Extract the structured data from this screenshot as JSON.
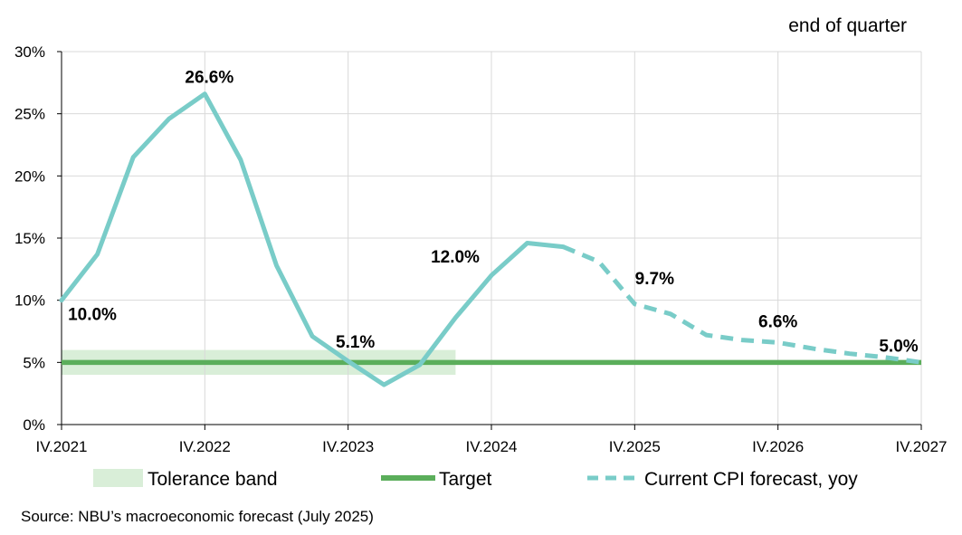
{
  "chart_data": {
    "type": "line",
    "title": "",
    "unit_note": "end of quarter",
    "xlabel": "",
    "ylabel": "",
    "x_tick_labels": [
      "IV.2021",
      "IV.2022",
      "IV.2023",
      "IV.2024",
      "IV.2025",
      "IV.2026",
      "IV.2027"
    ],
    "y_tick_labels": [
      "0%",
      "5%",
      "10%",
      "15%",
      "20%",
      "25%",
      "30%"
    ],
    "ylim": [
      0,
      30
    ],
    "grid": true,
    "legend_placement": "bottom",
    "x": [
      "IV.2021",
      "I.2022",
      "II.2022",
      "III.2022",
      "IV.2022",
      "I.2023",
      "II.2023",
      "III.2023",
      "IV.2023",
      "I.2024",
      "II.2024",
      "III.2024",
      "IV.2024",
      "I.2025",
      "II.2025",
      "III.2025",
      "IV.2025",
      "I.2026",
      "II.2026",
      "III.2026",
      "IV.2026",
      "I.2027",
      "II.2027",
      "III.2027",
      "IV.2027"
    ],
    "series": [
      {
        "name": "Current CPI forecast, yoy",
        "color": "#79CCC8",
        "actual_values": [
          10.0,
          13.7,
          21.5,
          24.6,
          26.6,
          21.3,
          12.8,
          7.1,
          5.1,
          3.2,
          4.8,
          8.6,
          12.0,
          14.6,
          14.3,
          null,
          null,
          null,
          null,
          null,
          null,
          null,
          null,
          null,
          null
        ],
        "forecast_values": [
          null,
          null,
          null,
          null,
          null,
          null,
          null,
          null,
          null,
          null,
          null,
          null,
          null,
          null,
          14.3,
          13.1,
          9.7,
          8.9,
          7.2,
          6.8,
          6.6,
          6.1,
          5.7,
          5.4,
          5.0
        ]
      },
      {
        "name": "Target",
        "color": "#5BAE5B",
        "value": 5
      },
      {
        "name": "Tolerance band",
        "color": "#D9EED8",
        "low": 4,
        "high": 6,
        "x_start": "IV.2021",
        "x_end": "III.2024"
      }
    ],
    "data_labels": [
      {
        "text": "10.0%",
        "x": "IV.2021",
        "y": 10.0
      },
      {
        "text": "26.6%",
        "x": "IV.2022",
        "y": 26.6
      },
      {
        "text": "5.1%",
        "x": "IV.2023",
        "y": 5.1
      },
      {
        "text": "12.0%",
        "x": "IV.2024",
        "y": 12.0
      },
      {
        "text": "9.7%",
        "x": "IV.2025",
        "y": 9.7
      },
      {
        "text": "6.6%",
        "x": "IV.2026",
        "y": 6.6
      },
      {
        "text": "5.0%",
        "x": "IV.2027",
        "y": 5.0
      }
    ],
    "legend": [
      {
        "label": "Tolerance band",
        "style": "band"
      },
      {
        "label": "Target",
        "style": "solid"
      },
      {
        "label": "Current CPI forecast, yoy",
        "style": "dashed"
      }
    ],
    "source": "Source: NBU’s macroeconomic forecast (July 2025)"
  }
}
